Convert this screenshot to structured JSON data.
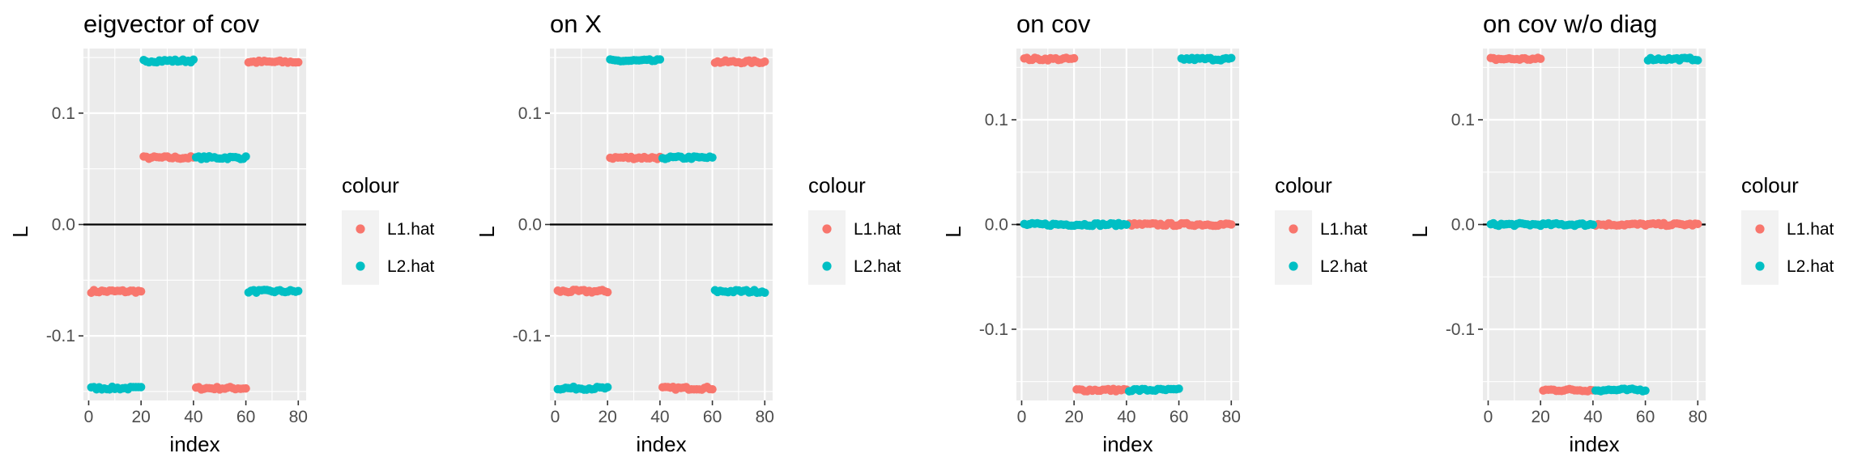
{
  "chart_data": [
    {
      "type": "scatter",
      "title": "eigvector of cov",
      "xlabel": "index",
      "ylabel": "L",
      "xlim": [
        -2,
        83
      ],
      "ylim": [
        -0.158,
        0.158
      ],
      "x_ticks": [
        0,
        20,
        40,
        60,
        80
      ],
      "x_tick_labels": [
        "0",
        "20",
        "40",
        "60",
        "80"
      ],
      "y_ticks": [
        -0.1,
        0.0,
        0.1
      ],
      "y_tick_labels": [
        "-0.1",
        "0.0",
        "0.1"
      ],
      "hline": 0,
      "grid": true,
      "legend": {
        "title": "colour",
        "position": "right",
        "entries": [
          "L1.hat",
          "L2.hat"
        ]
      },
      "series": [
        {
          "name": "L1.hat",
          "color": "#F8766D",
          "segments": [
            {
              "x": [
                1,
                20
              ],
              "y": -0.06
            },
            {
              "x": [
                21,
                40
              ],
              "y": 0.06
            },
            {
              "x": [
                41,
                60
              ],
              "y": -0.147
            },
            {
              "x": [
                61,
                80
              ],
              "y": 0.146
            }
          ]
        },
        {
          "name": "L2.hat",
          "color": "#00BFC4",
          "segments": [
            {
              "x": [
                1,
                20
              ],
              "y": -0.147
            },
            {
              "x": [
                21,
                40
              ],
              "y": 0.147
            },
            {
              "x": [
                41,
                60
              ],
              "y": 0.06
            },
            {
              "x": [
                61,
                80
              ],
              "y": -0.06
            }
          ]
        }
      ]
    },
    {
      "type": "scatter",
      "title": "on X",
      "xlabel": "index",
      "ylabel": "L",
      "xlim": [
        -2,
        83
      ],
      "ylim": [
        -0.158,
        0.158
      ],
      "x_ticks": [
        0,
        20,
        40,
        60,
        80
      ],
      "x_tick_labels": [
        "0",
        "20",
        "40",
        "60",
        "80"
      ],
      "y_ticks": [
        -0.1,
        0.0,
        0.1
      ],
      "y_tick_labels": [
        "-0.1",
        "0.0",
        "0.1"
      ],
      "hline": 0,
      "grid": true,
      "legend": {
        "title": "colour",
        "position": "right",
        "entries": [
          "L1.hat",
          "L2.hat"
        ]
      },
      "series": [
        {
          "name": "L1.hat",
          "color": "#F8766D",
          "segments": [
            {
              "x": [
                1,
                20
              ],
              "y": -0.06
            },
            {
              "x": [
                21,
                40
              ],
              "y": 0.06
            },
            {
              "x": [
                41,
                60
              ],
              "y": -0.147
            },
            {
              "x": [
                61,
                80
              ],
              "y": 0.146
            }
          ]
        },
        {
          "name": "L2.hat",
          "color": "#00BFC4",
          "segments": [
            {
              "x": [
                1,
                20
              ],
              "y": -0.147
            },
            {
              "x": [
                21,
                40
              ],
              "y": 0.147
            },
            {
              "x": [
                41,
                60
              ],
              "y": 0.06
            },
            {
              "x": [
                61,
                80
              ],
              "y": -0.06
            }
          ]
        }
      ]
    },
    {
      "type": "scatter",
      "title": "on cov",
      "xlabel": "index",
      "ylabel": "L",
      "xlim": [
        -2,
        83
      ],
      "ylim": [
        -0.168,
        0.168
      ],
      "x_ticks": [
        0,
        20,
        40,
        60,
        80
      ],
      "x_tick_labels": [
        "0",
        "20",
        "40",
        "60",
        "80"
      ],
      "y_ticks": [
        -0.1,
        0.0,
        0.1
      ],
      "y_tick_labels": [
        "-0.1",
        "0.0",
        "0.1"
      ],
      "hline": 0,
      "grid": true,
      "legend": {
        "title": "colour",
        "position": "right",
        "entries": [
          "L1.hat",
          "L2.hat"
        ]
      },
      "series": [
        {
          "name": "L1.hat",
          "color": "#F8766D",
          "segments": [
            {
              "x": [
                1,
                20
              ],
              "y": 0.158
            },
            {
              "x": [
                21,
                40
              ],
              "y": -0.158
            },
            {
              "x": [
                41,
                80
              ],
              "y": 0.0
            }
          ]
        },
        {
          "name": "L2.hat",
          "color": "#00BFC4",
          "segments": [
            {
              "x": [
                1,
                40
              ],
              "y": 0.0
            },
            {
              "x": [
                41,
                60
              ],
              "y": -0.158
            },
            {
              "x": [
                61,
                80
              ],
              "y": 0.158
            }
          ]
        }
      ]
    },
    {
      "type": "scatter",
      "title": "on cov w/o diag",
      "xlabel": "index",
      "ylabel": "L",
      "xlim": [
        -2,
        83
      ],
      "ylim": [
        -0.168,
        0.168
      ],
      "x_ticks": [
        0,
        20,
        40,
        60,
        80
      ],
      "x_tick_labels": [
        "0",
        "20",
        "40",
        "60",
        "80"
      ],
      "y_ticks": [
        -0.1,
        0.0,
        0.1
      ],
      "y_tick_labels": [
        "-0.1",
        "0.0",
        "0.1"
      ],
      "hline": 0,
      "grid": true,
      "legend": {
        "title": "colour",
        "position": "right",
        "entries": [
          "L1.hat",
          "L2.hat"
        ]
      },
      "series": [
        {
          "name": "L1.hat",
          "color": "#F8766D",
          "segments": [
            {
              "x": [
                1,
                20
              ],
              "y": 0.158
            },
            {
              "x": [
                21,
                40
              ],
              "y": -0.158
            },
            {
              "x": [
                41,
                80
              ],
              "y": 0.0
            }
          ]
        },
        {
          "name": "L2.hat",
          "color": "#00BFC4",
          "segments": [
            {
              "x": [
                1,
                40
              ],
              "y": 0.0
            },
            {
              "x": [
                41,
                60
              ],
              "y": -0.158
            },
            {
              "x": [
                61,
                80
              ],
              "y": 0.158
            }
          ]
        }
      ]
    }
  ]
}
